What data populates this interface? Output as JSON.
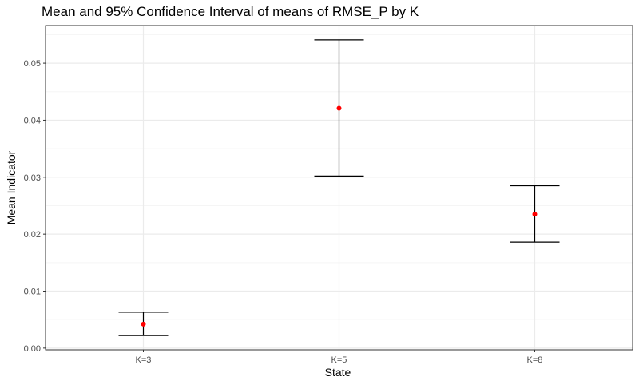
{
  "chart_data": {
    "type": "errorbar",
    "title": "Mean and 95% Confidence Interval of means of RMSE_P by K",
    "xlabel": "State",
    "ylabel": "Mean Indicator",
    "categories": [
      "K=3",
      "K=5",
      "K=8"
    ],
    "series": [
      {
        "mean": [
          0.0042,
          0.0421,
          0.0235
        ],
        "lower": [
          0.0022,
          0.0302,
          0.0186
        ],
        "upper": [
          0.0063,
          0.0541,
          0.0285
        ]
      }
    ],
    "ylim": [
      -0.0003,
      0.0566
    ],
    "yticks": [
      0.0,
      0.01,
      0.02,
      0.03,
      0.04,
      0.05
    ],
    "ytick_labels": [
      "0.00",
      "0.01",
      "0.02",
      "0.03",
      "0.04",
      "0.05"
    ],
    "grid": true,
    "colors": {
      "point": "#ff0000",
      "errorbar": "#000000",
      "grid_major": "#ebebeb",
      "grid_minor": "#f5f5f5",
      "panel_border": "#333333"
    }
  }
}
